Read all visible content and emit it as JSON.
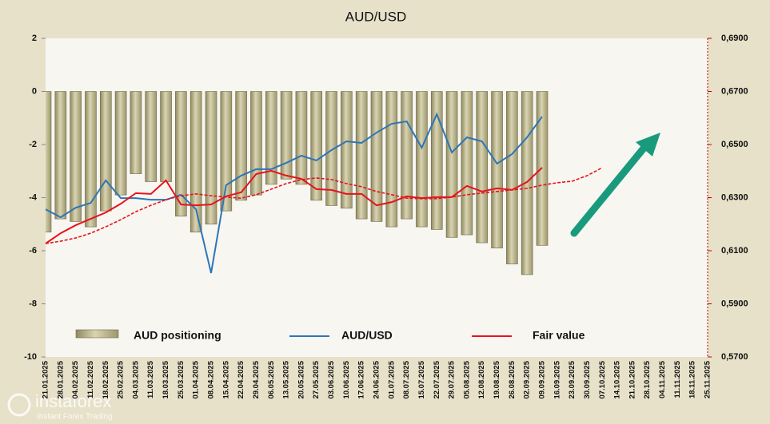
{
  "chart_data": {
    "type": "bar_line",
    "title": "AUD/USD",
    "categories": [
      "21.01.2025",
      "28.01.2025",
      "04.02.2025",
      "11.02.2025",
      "18.02.2025",
      "25.02.2025",
      "04.03.2025",
      "11.03.2025",
      "18.03.2025",
      "25.03.2025",
      "01.04.2025",
      "08.04.2025",
      "15.04.2025",
      "22.04.2025",
      "29.04.2025",
      "06.05.2025",
      "13.05.2025",
      "20.05.2025",
      "27.05.2025",
      "03.06.2025",
      "10.06.2025",
      "17.06.2025",
      "24.06.2025",
      "01.07.2025",
      "08.07.2025",
      "15.07.2025",
      "22.07.2025",
      "29.07.2025",
      "05.08.2025",
      "12.08.2025",
      "19.08.2025",
      "26.08.2025",
      "02.09.2025",
      "09.09.2025",
      "16.09.2025",
      "23.09.2025",
      "30.09.2025",
      "07.10.2025",
      "14.10.2025",
      "21.10.2025",
      "28.10.2025",
      "04.11.2025",
      "11.11.2025",
      "18.11.2025",
      "25.11.2025"
    ],
    "series": [
      {
        "name": "AUD positioning",
        "kind": "bar",
        "axis": "y",
        "color": "#bdb68c",
        "values": [
          -5.3,
          -4.8,
          -4.9,
          -5.1,
          -4.5,
          -3.9,
          -3.1,
          -3.4,
          -3.4,
          -4.7,
          -5.3,
          -5.0,
          -4.5,
          -4.1,
          -3.9,
          -3.5,
          -3.3,
          -3.5,
          -4.1,
          -4.3,
          -4.4,
          -4.8,
          -4.9,
          -5.1,
          -4.8,
          -5.1,
          -5.2,
          -5.5,
          -5.4,
          -5.7,
          -5.9,
          -6.5,
          -6.9,
          -5.8,
          null,
          null,
          null,
          null,
          null,
          null,
          null,
          null,
          null,
          null,
          null
        ]
      },
      {
        "name": "AUD/USD",
        "kind": "line",
        "axis": "y2",
        "color": "#2e75b6",
        "values": [
          0.6256,
          0.6226,
          0.6262,
          0.628,
          0.6365,
          0.6298,
          0.6298,
          0.6292,
          0.6292,
          0.6311,
          0.6256,
          0.6016,
          0.6347,
          0.6383,
          0.6407,
          0.6407,
          0.6431,
          0.6458,
          0.644,
          0.6479,
          0.6512,
          0.6506,
          0.6545,
          0.6578,
          0.6587,
          0.6488,
          0.6614,
          0.647,
          0.6527,
          0.6512,
          0.6428,
          0.6464,
          0.6527,
          0.6605,
          null,
          null,
          null,
          null,
          null,
          null,
          null,
          null,
          null,
          null,
          null
        ]
      },
      {
        "name": "Fair value",
        "kind": "line",
        "axis": "y2",
        "color": "#e8121b",
        "values": [
          0.6127,
          0.6166,
          0.6196,
          0.622,
          0.6244,
          0.6277,
          0.6317,
          0.6314,
          0.6365,
          0.6274,
          0.6271,
          0.6274,
          0.6305,
          0.632,
          0.6389,
          0.6401,
          0.6383,
          0.6371,
          0.6332,
          0.6329,
          0.6314,
          0.6314,
          0.6271,
          0.6283,
          0.6305,
          0.6298,
          0.6302,
          0.6302,
          0.6344,
          0.6323,
          0.6335,
          0.6329,
          0.6359,
          0.6413,
          null,
          null,
          null,
          null,
          null,
          null,
          null,
          null,
          null,
          null,
          null
        ]
      },
      {
        "kind": "dashed",
        "axis": "y2",
        "color": "#e8121b",
        "values": [
          0.6127,
          0.6136,
          0.6148,
          0.6166,
          0.619,
          0.6217,
          0.6247,
          0.6271,
          0.6292,
          0.6307,
          0.6314,
          0.6307,
          0.6302,
          0.6298,
          0.6311,
          0.6332,
          0.6353,
          0.6368,
          0.6374,
          0.6368,
          0.6353,
          0.6341,
          0.6323,
          0.6311,
          0.6298,
          0.6296,
          0.6296,
          0.6302,
          0.6311,
          0.6317,
          0.6323,
          0.6329,
          0.6335,
          0.6347,
          0.6356,
          0.6362,
          0.6383,
          0.6413,
          null,
          null,
          null,
          null,
          null,
          null,
          null
        ]
      }
    ],
    "ylim": [
      -10,
      2
    ],
    "yticks": [
      -10,
      -8,
      -6,
      -4,
      -2,
      0,
      2
    ],
    "y2lim": [
      0.57,
      0.69
    ],
    "y2ticks": [
      {
        "value": 0.57,
        "label": "0,5700"
      },
      {
        "value": 0.59,
        "label": "0,5900"
      },
      {
        "value": 0.61,
        "label": "0,6100"
      },
      {
        "value": 0.63,
        "label": "0,6300"
      },
      {
        "value": 0.65,
        "label": "0,6500"
      },
      {
        "value": 0.67,
        "label": "0,6700"
      },
      {
        "value": 0.69,
        "label": "0,6900"
      }
    ],
    "y2_axis_color": "#c00000"
  },
  "watermark": {
    "name": "instaforex",
    "tagline": "Instant Forex Trading"
  }
}
